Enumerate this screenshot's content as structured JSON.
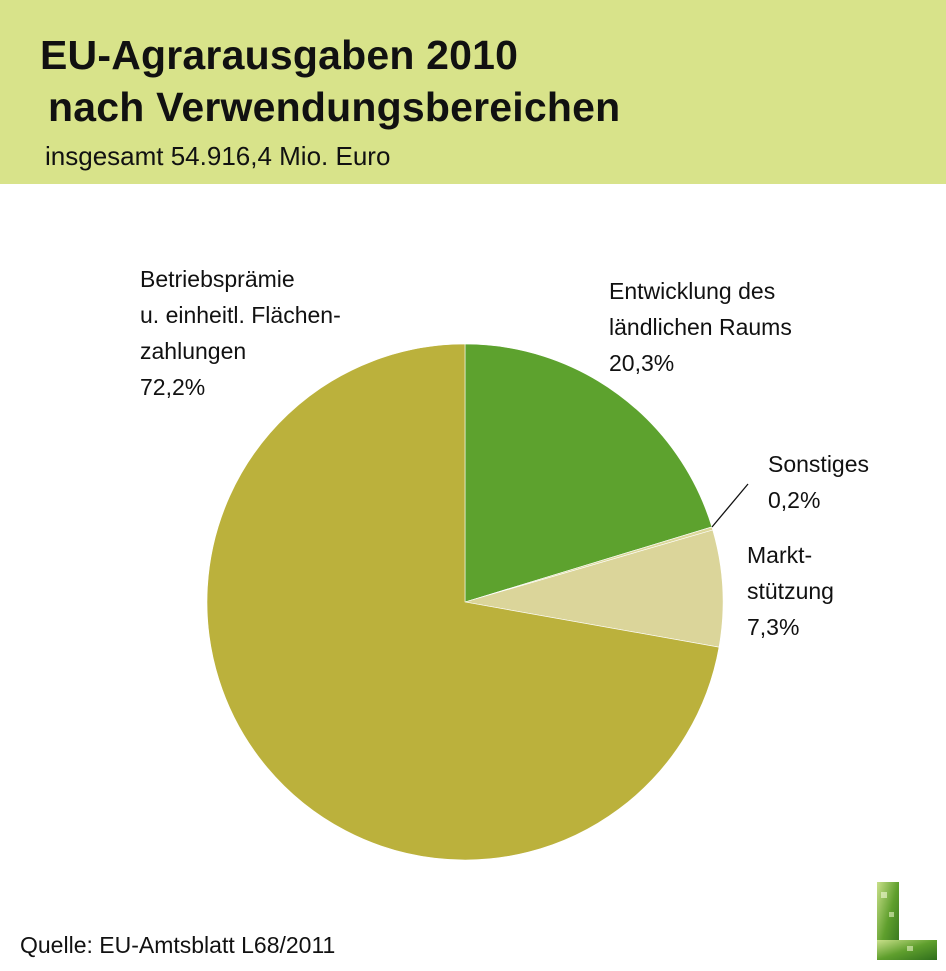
{
  "header": {
    "title_line1": "EU-Agrarausgaben 2010",
    "title_line2": "nach Verwendungsbereichen",
    "subtitle": "insgesamt 54.916,4 Mio. Euro"
  },
  "chart_data": {
    "type": "pie",
    "title": "EU-Agrarausgaben 2010 nach Verwendungsbereichen",
    "subtitle": "insgesamt 54.916,4 Mio. Euro",
    "start_angle_deg": 0,
    "direction": "clockwise",
    "slices": [
      {
        "name": "Entwicklung des ländlichen Raums",
        "value": 20.3,
        "color": "#5da22e",
        "label_lines": [
          "Entwicklung des",
          "ländlichen Raums",
          "20,3%"
        ]
      },
      {
        "name": "Sonstiges",
        "value": 0.2,
        "color": "#dcd89a",
        "label_lines": [
          "Sonstiges",
          "0,2%"
        ]
      },
      {
        "name": "Marktstützung",
        "value": 7.3,
        "color": "#dbd59a",
        "label_lines": [
          "Markt-",
          "stützung",
          "7,3%"
        ]
      },
      {
        "name": "Betriebsprämie u. einheitl. Flächenzahlungen",
        "value": 72.2,
        "color": "#bbb13c",
        "label_lines": [
          "Betriebsprämie",
          "u. einheitl. Flächen-",
          "zahlungen",
          "72,2%"
        ]
      }
    ]
  },
  "footer": {
    "source": "Quelle: EU-Amtsblatt L68/2011"
  },
  "colors": {
    "header_background": "#d8e38a",
    "leader_line": "#111111"
  },
  "logo": {
    "icon": "green-l-logo-icon"
  }
}
